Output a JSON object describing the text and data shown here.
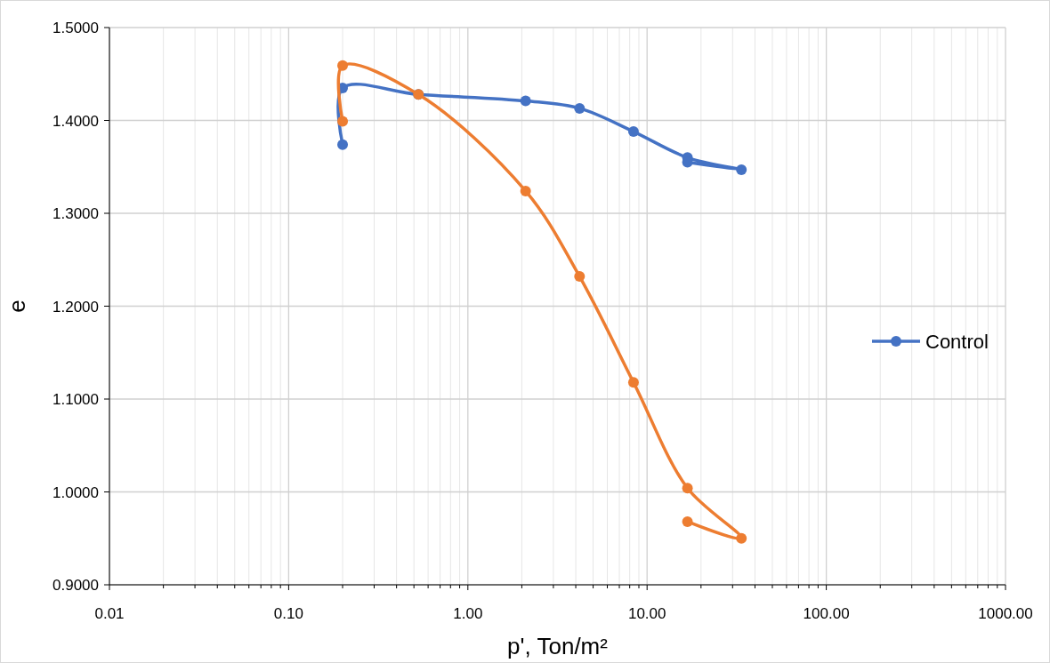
{
  "chart_data": {
    "type": "line",
    "xlabel": "p', Ton/m²",
    "ylabel": "e",
    "log": "x",
    "grid": true,
    "legend": "right",
    "marker": "circle",
    "line_style": "solid",
    "xlim": [
      0.01,
      1000
    ],
    "xticks": [
      {
        "value": 0.01,
        "label": "0.01"
      },
      {
        "value": 0.1,
        "label": "0.10"
      },
      {
        "value": 1,
        "label": "1.00"
      },
      {
        "value": 10,
        "label": "10.00"
      },
      {
        "value": 100,
        "label": "100.00"
      },
      {
        "value": 1000,
        "label": "1000.00"
      }
    ],
    "ylim": [
      0.9,
      1.5
    ],
    "yticks": [
      {
        "value": 0.9,
        "label": "0.9000"
      },
      {
        "value": 1.0,
        "label": "1.0000"
      },
      {
        "value": 1.1,
        "label": "1.1000"
      },
      {
        "value": 1.2,
        "label": "1.2000"
      },
      {
        "value": 1.3,
        "label": "1.3000"
      },
      {
        "value": 1.4,
        "label": "1.4000"
      },
      {
        "value": 1.5,
        "label": "1.5000"
      }
    ],
    "series": [
      {
        "name": "Control",
        "color": "#4472c4",
        "x": [
          0.2,
          0.2,
          0.53,
          2.1,
          4.2,
          8.4,
          16.8,
          33.6,
          16.8
        ],
        "values": [
          1.374,
          1.435,
          1.428,
          1.421,
          1.413,
          1.388,
          1.36,
          1.347,
          1.355
        ]
      },
      {
        "color": "#ed7d31",
        "x": [
          0.2,
          0.2,
          0.53,
          2.1,
          4.2,
          8.4,
          16.8,
          33.6,
          16.8
        ],
        "values": [
          1.399,
          1.459,
          1.428,
          1.324,
          1.232,
          1.118,
          1.004,
          0.95,
          0.968
        ]
      }
    ]
  }
}
